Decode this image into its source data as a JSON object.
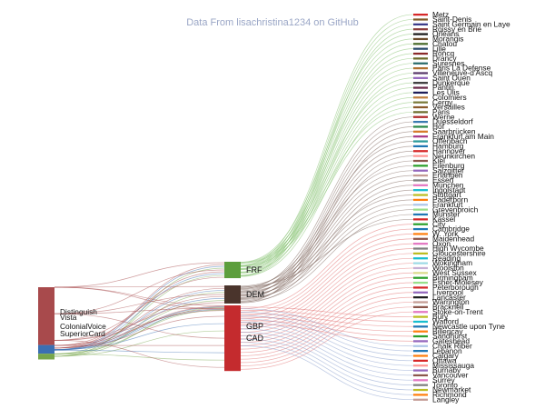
{
  "chart_data": {
    "type": "sankey",
    "title": "Data From lisachristina1234 on GitHub",
    "sources": [
      {
        "name": "Distinguish",
        "color": "#a84a4c",
        "weight": 60
      },
      {
        "name": "Vista",
        "color": "#a84a4c",
        "weight": 0
      },
      {
        "name": "ColonialVoice",
        "color": "#3b6fb2",
        "weight": 9
      },
      {
        "name": "SuperiorCard",
        "color": "#77a64a",
        "weight": 6
      }
    ],
    "currencies": [
      {
        "name": "FRF",
        "color": "#5c9e3c",
        "weight": 19
      },
      {
        "name": "DEM",
        "color": "#4a342c",
        "weight": 21
      },
      {
        "name": "GBP",
        "color": "#c42b2e",
        "weight": 0
      },
      {
        "name": "CAD",
        "color": "#c42b2e",
        "weight": 76
      }
    ],
    "cities": [
      {
        "name": "Metz",
        "group": "FRF",
        "color": "#d62728"
      },
      {
        "name": "Saint-Denis",
        "group": "FRF",
        "color": "#7f5a2a"
      },
      {
        "name": "Saint Germain en Laye",
        "group": "FRF",
        "color": "#3a3a8a"
      },
      {
        "name": "Roissy en Brie",
        "group": "FRF",
        "color": "#8a3a3a"
      },
      {
        "name": "Orleans",
        "group": "FRF",
        "color": "#1a1a1a"
      },
      {
        "name": "Morangis",
        "group": "FRF",
        "color": "#6b4a2a"
      },
      {
        "name": "Chatou",
        "group": "FRF",
        "color": "#4a6b2a"
      },
      {
        "name": "Lille",
        "group": "FRF",
        "color": "#2a4a6b"
      },
      {
        "name": "Roncq",
        "group": "FRF",
        "color": "#8b2a2a"
      },
      {
        "name": "Drancy",
        "group": "FRF",
        "color": "#6b6b2a"
      },
      {
        "name": "Suresnes",
        "group": "FRF",
        "color": "#2a6b6b"
      },
      {
        "name": "Paris La Defense",
        "group": "FRF",
        "color": "#b07030"
      },
      {
        "name": "Villeneuve-d'Ascq",
        "group": "FRF",
        "color": "#5a3a6b"
      },
      {
        "name": "Saint Ouen",
        "group": "FRF",
        "color": "#9467bd"
      },
      {
        "name": "Dunkerque",
        "group": "FRF",
        "color": "#3a3a3a"
      },
      {
        "name": "Pantin",
        "group": "FRF",
        "color": "#6b2a4a"
      },
      {
        "name": "Les Ulis",
        "group": "FRF",
        "color": "#1f1f5a"
      },
      {
        "name": "Colomiers",
        "group": "FRF",
        "color": "#c08040"
      },
      {
        "name": "Cergy",
        "group": "FRF",
        "color": "#7a7a3a"
      },
      {
        "name": "Versailles",
        "group": "FRF",
        "color": "#8b5a2b"
      },
      {
        "name": "Paris",
        "group": "FRF",
        "color": "#6e6e2e"
      },
      {
        "name": "Werne",
        "group": "DEM",
        "color": "#b02a2a"
      },
      {
        "name": "Duesseldorf",
        "group": "DEM",
        "color": "#3a7ab0"
      },
      {
        "name": "Hof",
        "group": "DEM",
        "color": "#2a8a4a"
      },
      {
        "name": "Saarbrücken",
        "group": "DEM",
        "color": "#d67a2a"
      },
      {
        "name": "Frankfurt am Main",
        "group": "DEM",
        "color": "#a83a8a"
      },
      {
        "name": "Offenbach",
        "group": "DEM",
        "color": "#2a9a9a"
      },
      {
        "name": "Hamburg",
        "group": "DEM",
        "color": "#1f77b4"
      },
      {
        "name": "Hannover",
        "group": "DEM",
        "color": "#d62728"
      },
      {
        "name": "Neunkirchen",
        "group": "DEM",
        "color": "#ff9896"
      },
      {
        "name": "Kiel",
        "group": "DEM",
        "color": "#8c564b"
      },
      {
        "name": "Eilenburg",
        "group": "DEM",
        "color": "#2ca02c"
      },
      {
        "name": "Salzgitter",
        "group": "DEM",
        "color": "#9467bd"
      },
      {
        "name": "Erlangen",
        "group": "DEM",
        "color": "#c49c94"
      },
      {
        "name": "Essen",
        "group": "DEM",
        "color": "#7f7f7f"
      },
      {
        "name": "München",
        "group": "DEM",
        "color": "#e377c2"
      },
      {
        "name": "Ingolstadt",
        "group": "DEM",
        "color": "#17becf"
      },
      {
        "name": "Stuttgart",
        "group": "DEM",
        "color": "#bcbd22"
      },
      {
        "name": "Paderborn",
        "group": "DEM",
        "color": "#ff7f0e"
      },
      {
        "name": "Frankfurt",
        "group": "DEM",
        "color": "#aec7e8"
      },
      {
        "name": "Grevenbroich",
        "group": "DEM",
        "color": "#98df8a"
      },
      {
        "name": "Münster",
        "group": "DEM",
        "color": "#1f77b4"
      },
      {
        "name": "Kassel",
        "group": "DEM",
        "color": "#d62728"
      },
      {
        "name": "City",
        "group": "GBP",
        "color": "#2ca02c"
      },
      {
        "name": "Cambridge",
        "group": "GBP",
        "color": "#1f77b4"
      },
      {
        "name": "W. York",
        "group": "GBP",
        "color": "#ff7f0e"
      },
      {
        "name": "Maidenhead",
        "group": "GBP",
        "color": "#8c564b"
      },
      {
        "name": "Oxon",
        "group": "GBP",
        "color": "#e377c2"
      },
      {
        "name": "High Wycombe",
        "group": "GBP",
        "color": "#7f7f7f"
      },
      {
        "name": "Gloucestershire",
        "group": "GBP",
        "color": "#bcbd22"
      },
      {
        "name": "Reading",
        "group": "GBP",
        "color": "#17becf"
      },
      {
        "name": "Wokingham",
        "group": "GBP",
        "color": "#9edae5"
      },
      {
        "name": "Woolston",
        "group": "GBP",
        "color": "#c5b0d5"
      },
      {
        "name": "West Sussex",
        "group": "GBP",
        "color": "#dbdb8d"
      },
      {
        "name": "Birmingham",
        "group": "GBP",
        "color": "#2ca02c"
      },
      {
        "name": "Esher-Molesey",
        "group": "GBP",
        "color": "#98df8a"
      },
      {
        "name": "Peterborough",
        "group": "GBP",
        "color": "#d62728"
      },
      {
        "name": "Liverpool",
        "group": "GBP",
        "color": "#9467bd"
      },
      {
        "name": "Lancaster",
        "group": "GBP",
        "color": "#1f1f1f"
      },
      {
        "name": "Warrington",
        "group": "GBP",
        "color": "#c49c94"
      },
      {
        "name": "Bracknell",
        "group": "GBP",
        "color": "#8c564b"
      },
      {
        "name": "Stoke-on-Trent",
        "group": "GBP",
        "color": "#e377c2"
      },
      {
        "name": "Bury",
        "group": "GBP",
        "color": "#bcbd22"
      },
      {
        "name": "Watford",
        "group": "GBP",
        "color": "#17becf"
      },
      {
        "name": "Newcastle upon Tyne",
        "group": "GBP",
        "color": "#1f77b4"
      },
      {
        "name": "Billericay",
        "group": "GBP",
        "color": "#ff7f0e"
      },
      {
        "name": "Sandhurst",
        "group": "GBP",
        "color": "#2ca02c"
      },
      {
        "name": "Gateshead",
        "group": "GBP",
        "color": "#9467bd"
      },
      {
        "name": "Chalk Riber",
        "group": "CAD",
        "color": "#aec7e8"
      },
      {
        "name": "Lebanon",
        "group": "CAD",
        "color": "#1f77b4"
      },
      {
        "name": "Calgary",
        "group": "CAD",
        "color": "#ff7f0e"
      },
      {
        "name": "Ottawa",
        "group": "CAD",
        "color": "#d62728"
      },
      {
        "name": "Mississauga",
        "group": "CAD",
        "color": "#ff9896"
      },
      {
        "name": "Burnaby",
        "group": "CAD",
        "color": "#9467bd"
      },
      {
        "name": "Vancouver",
        "group": "CAD",
        "color": "#8c564b"
      },
      {
        "name": "Surrey",
        "group": "CAD",
        "color": "#e377c2"
      },
      {
        "name": "Toronto",
        "group": "CAD",
        "color": "#7f7f7f"
      },
      {
        "name": "Newmarket",
        "group": "CAD",
        "color": "#bcbd22"
      },
      {
        "name": "Richmond",
        "group": "CAD",
        "color": "#ff7f0e"
      },
      {
        "name": "Langley",
        "group": "CAD",
        "color": "#c49c94"
      }
    ]
  }
}
